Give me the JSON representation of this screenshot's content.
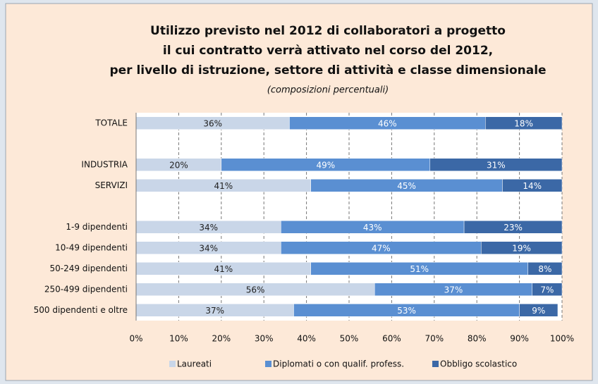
{
  "chart_data": {
    "type": "stacked-barh",
    "title": [
      "Utilizzo previsto nel 2012 di collaboratori a progetto",
      "il cui contratto verrà attivato nel corso del 2012,",
      "per livello di istruzione, settore di attività e classe dimensionale"
    ],
    "subtitle": "(composizioni percentuali)",
    "categories": [
      "TOTALE",
      null,
      "INDUSTRIA",
      "SERVIZI",
      null,
      "1-9 dipendenti",
      "10-49 dipendenti",
      "50-249 dipendenti",
      "250-499 dipendenti",
      "500 dipendenti e oltre"
    ],
    "series": [
      {
        "name": "Laureati",
        "color": "#c9d6e8",
        "text_color": "#222222",
        "values": [
          36,
          null,
          20,
          41,
          null,
          34,
          34,
          41,
          56,
          37
        ],
        "value_labels": [
          "36%",
          null,
          "20%",
          "41%",
          null,
          "34%",
          "34%",
          "41%",
          "56%",
          "37%"
        ]
      },
      {
        "name": "Diplomati o con qualif. profess.",
        "color": "#5a8fd2",
        "text_color": "#ffffff",
        "values": [
          46,
          null,
          49,
          45,
          null,
          43,
          47,
          51,
          37,
          53
        ],
        "value_labels": [
          "46%",
          null,
          "49%",
          "45%",
          null,
          "43%",
          "47%",
          "51%",
          "37%",
          "53%"
        ]
      },
      {
        "name": "Obbligo scolastico",
        "color": "#3b68a6",
        "text_color": "#ffffff",
        "values": [
          18,
          null,
          31,
          14,
          null,
          23,
          19,
          8,
          7,
          9
        ],
        "value_labels": [
          "18%",
          null,
          "31%",
          "14%",
          null,
          "23%",
          "19%",
          "8%",
          "7%",
          "9%"
        ]
      }
    ],
    "xlim": [
      0,
      100
    ],
    "xticks": [
      {
        "value": 0,
        "label": "0%"
      },
      {
        "value": 10,
        "label": "10%"
      },
      {
        "value": 20,
        "label": "20%"
      },
      {
        "value": 30,
        "label": "30%"
      },
      {
        "value": 40,
        "label": "40%"
      },
      {
        "value": 50,
        "label": "50%"
      },
      {
        "value": 60,
        "label": "60%"
      },
      {
        "value": 70,
        "label": "70%"
      },
      {
        "value": 80,
        "label": "80%"
      },
      {
        "value": 90,
        "label": "90%"
      },
      {
        "value": 100,
        "label": "100%"
      }
    ],
    "grid": true,
    "legend": "bottom"
  }
}
